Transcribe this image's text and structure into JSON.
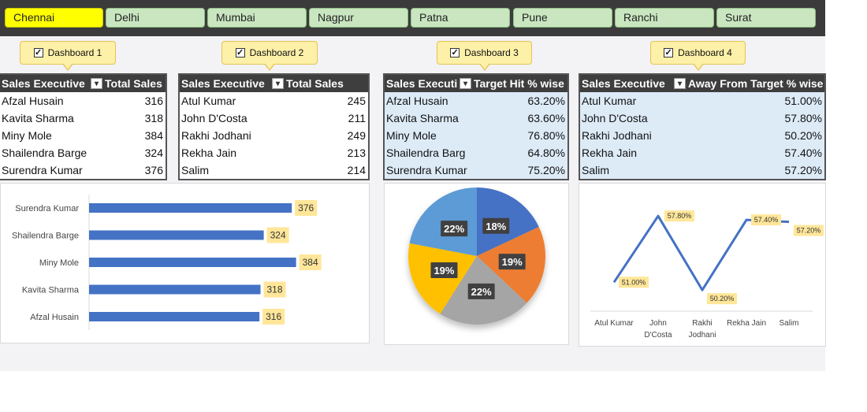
{
  "cities": [
    {
      "label": "Chennai",
      "active": true
    },
    {
      "label": "Delhi",
      "active": false
    },
    {
      "label": "Mumbai",
      "active": false
    },
    {
      "label": "Nagpur",
      "active": false
    },
    {
      "label": "Patna",
      "active": false
    },
    {
      "label": "Pune",
      "active": false
    },
    {
      "label": "Ranchi",
      "active": false
    },
    {
      "label": "Surat",
      "active": false
    }
  ],
  "dashboards": [
    {
      "label": "Dashboard 1",
      "checked": true
    },
    {
      "label": "Dashboard 2",
      "checked": true
    },
    {
      "label": "Dashboard 3",
      "checked": true
    },
    {
      "label": "Dashboard 4",
      "checked": true
    }
  ],
  "checkbox_icon": "check-icon",
  "filter_icon": "filter-dropdown-icon",
  "tables": [
    {
      "header_name": "Sales Executive",
      "header_value": "Total Sales",
      "rows": [
        {
          "name": "Afzal Husain",
          "value": "316"
        },
        {
          "name": "Kavita Sharma",
          "value": "318"
        },
        {
          "name": "Miny Mole",
          "value": "384"
        },
        {
          "name": "Shailendra Barge",
          "value": "324"
        },
        {
          "name": "Surendra Kumar",
          "value": "376"
        }
      ]
    },
    {
      "header_name": "Sales Executive",
      "header_value": "Total Sales",
      "rows": [
        {
          "name": "Atul Kumar",
          "value": "245"
        },
        {
          "name": "John D'Costa",
          "value": "211"
        },
        {
          "name": "Rakhi Jodhani",
          "value": "249"
        },
        {
          "name": "Rekha Jain",
          "value": "213"
        },
        {
          "name": "Salim",
          "value": "214"
        }
      ]
    },
    {
      "header_name": "Sales Executi",
      "header_value": "Target Hit % wise",
      "rows": [
        {
          "name": "Afzal Husain",
          "value": "63.20%"
        },
        {
          "name": "Kavita Sharma",
          "value": "63.60%"
        },
        {
          "name": "Miny Mole",
          "value": "76.80%"
        },
        {
          "name": "Shailendra Barg",
          "value": "64.80%"
        },
        {
          "name": "Surendra Kumar",
          "value": "75.20%"
        }
      ]
    },
    {
      "header_name": "Sales Executive",
      "header_value": "Away From Target % wise",
      "rows": [
        {
          "name": "Atul Kumar",
          "value": "51.00%"
        },
        {
          "name": "John D'Costa",
          "value": "57.80%"
        },
        {
          "name": "Rakhi Jodhani",
          "value": "50.20%"
        },
        {
          "name": "Rekha Jain",
          "value": "57.40%"
        },
        {
          "name": "Salim",
          "value": "57.20%"
        }
      ]
    }
  ],
  "colors": {
    "bar": "#4472c4",
    "label_bg": "#ffe699",
    "line": "#4472c4",
    "pie": [
      "#4472c4",
      "#ed7d31",
      "#a5a5a5",
      "#ffc000",
      "#5b9bd5"
    ]
  },
  "chart_data": [
    {
      "type": "bar",
      "orientation": "horizontal",
      "categories": [
        "Surendra Kumar",
        "Shailendra Barge",
        "Miny Mole",
        "Kavita Sharma",
        "Afzal Husain"
      ],
      "values": [
        376,
        324,
        384,
        318,
        316
      ],
      "data_labels": [
        "376",
        "324",
        "384",
        "318",
        "316"
      ],
      "xlim": [
        0,
        400
      ],
      "grid": false,
      "legend": "none"
    },
    {
      "type": "pie",
      "slices": [
        18,
        19,
        22,
        19,
        22
      ],
      "data_labels": [
        "18%",
        "19%",
        "22%",
        "19%",
        "22%"
      ],
      "legend": "none"
    },
    {
      "type": "line",
      "categories": [
        "Atul Kumar",
        "John D'Costa",
        "Rakhi Jodhani",
        "Rekha Jain",
        "Salim"
      ],
      "category_lines": [
        [
          "Atul Kumar"
        ],
        [
          "John",
          "D'Costa"
        ],
        [
          "Rakhi",
          "Jodhani"
        ],
        [
          "Rekha Jain"
        ],
        [
          "Salim"
        ]
      ],
      "values": [
        51.0,
        57.8,
        50.2,
        57.4,
        57.2
      ],
      "data_labels": [
        "51.00%",
        "57.80%",
        "50.20%",
        "57.40%",
        "57.20%"
      ],
      "ylim": [
        49,
        60
      ],
      "grid": false,
      "legend": "none"
    }
  ]
}
